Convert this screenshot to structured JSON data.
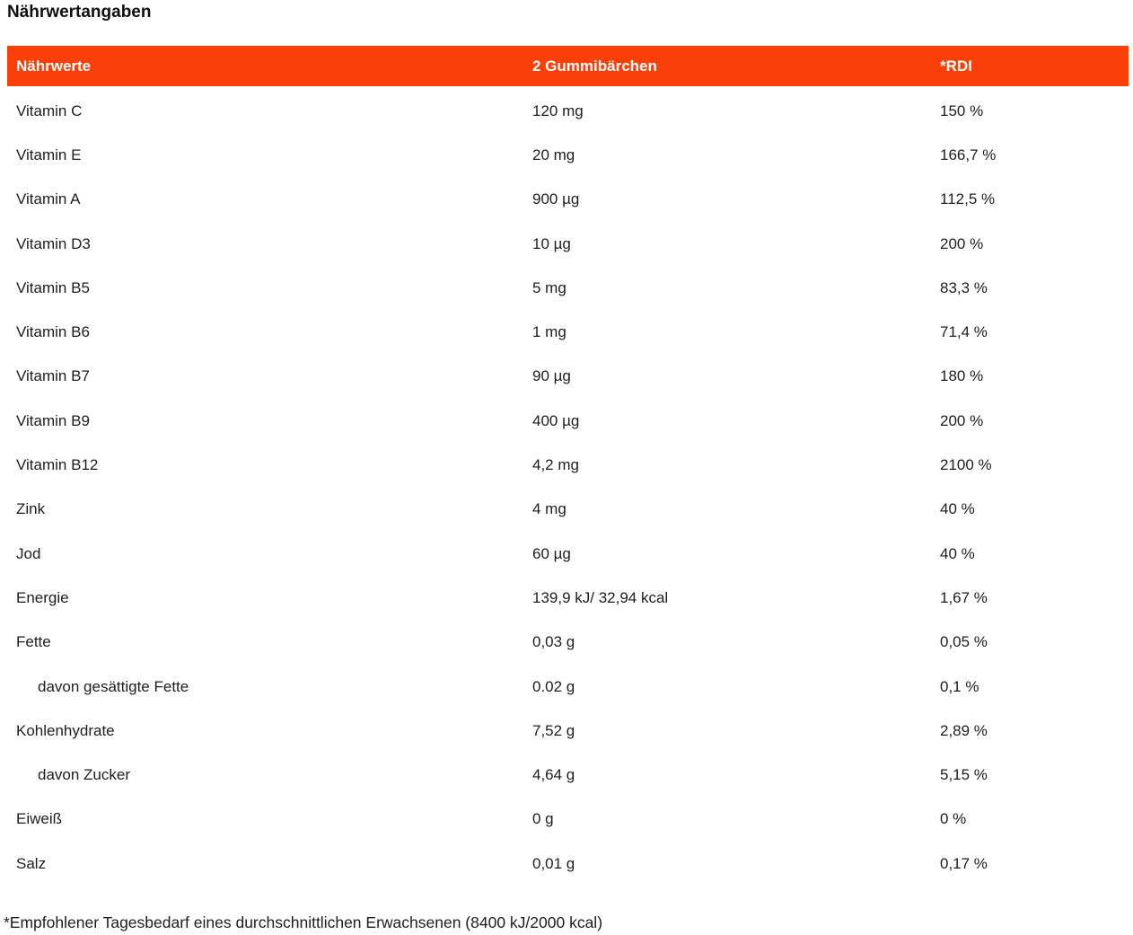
{
  "page": {
    "title": "Nährwertangaben",
    "footnote": "*Empfohlener Tagesbedarf eines durchschnittlichen Erwachsenen (8400 kJ/2000 kcal)"
  },
  "colors": {
    "header_bg": "#fa4008",
    "header_text": "#ffffff",
    "body_text": "#1d1d1d"
  },
  "table": {
    "headers": {
      "nutrients": "Nährwerte",
      "serving": "2 Gummibärchen",
      "rdi": "*RDI"
    },
    "rows": [
      {
        "name": "Vitamin C",
        "amount": "120 mg",
        "rdi": "150 %"
      },
      {
        "name": "Vitamin E",
        "amount": "20 mg",
        "rdi": "166,7 %"
      },
      {
        "name": "Vitamin A",
        "amount": "900 µg",
        "rdi": "112,5 %"
      },
      {
        "name": "Vitamin D3",
        "amount": "10 µg",
        "rdi": "200 %"
      },
      {
        "name": "Vitamin B5",
        "amount": "5 mg",
        "rdi": "83,3 %"
      },
      {
        "name": "Vitamin B6",
        "amount": "1 mg",
        "rdi": "71,4 %"
      },
      {
        "name": "Vitamin B7",
        "amount": "90 µg",
        "rdi": "180 %"
      },
      {
        "name": "Vitamin B9",
        "amount": "400 µg",
        "rdi": "200 %"
      },
      {
        "name": "Vitamin B12",
        "amount": "4,2 mg",
        "rdi": "2100 %"
      },
      {
        "name": "Zink",
        "amount": "4 mg",
        "rdi": "40 %"
      },
      {
        "name": "Jod",
        "amount": "60 µg",
        "rdi": "40 %"
      },
      {
        "name": "Energie",
        "amount": "139,9 kJ/ 32,94 kcal",
        "rdi": "1,67 %"
      },
      {
        "name": "Fette",
        "amount": "0,03 g",
        "rdi": "0,05 %"
      },
      {
        "name": "davon gesättigte Fette",
        "amount": "0.02 g",
        "rdi": "0,1 %"
      },
      {
        "name": "Kohlenhydrate",
        "amount": "7,52 g",
        "rdi": "2,89 %"
      },
      {
        "name": "davon Zucker",
        "amount": "4,64 g",
        "rdi": "5,15 %"
      },
      {
        "name": "Eiweiß",
        "amount": "0 g",
        "rdi": "0 %"
      },
      {
        "name": "Salz",
        "amount": "0,01 g",
        "rdi": "0,17 %"
      }
    ]
  }
}
